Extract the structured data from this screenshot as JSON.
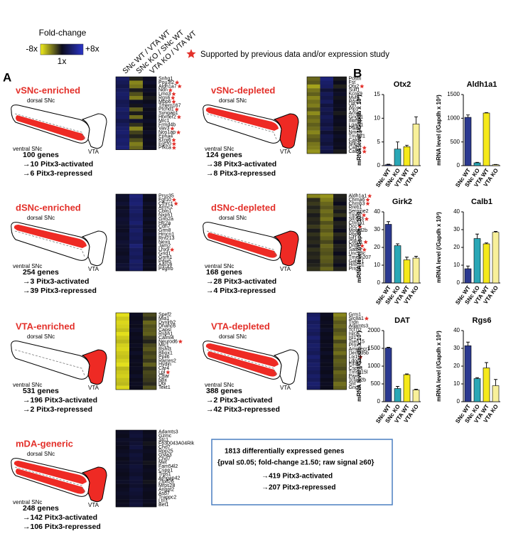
{
  "panel_labels": [
    "A",
    "B"
  ],
  "scale": {
    "title": "Fold-change",
    "ticks": [
      {
        "value": -3,
        "label": "-8x"
      },
      {
        "value": 0,
        "label": "1x"
      },
      {
        "value": 3,
        "label": "+8x"
      }
    ],
    "colors": [
      "#f2ee1c",
      "#0c0c1c",
      "#2b35c9"
    ]
  },
  "column_headers": [
    "SNc WT / VTA WT",
    "SNc KO / SNc WT",
    "VTA KO / VTA WT"
  ],
  "star_note": "Supported by previous data and/or expression study",
  "brain_labels": [
    "dorsal SNc",
    "ventral SNc",
    "VTA"
  ],
  "groups": [
    {
      "title": "vSNc-enriched",
      "counts": [
        "100 genes",
        "→10 Pitx3-activated",
        "→6 Pitx3-repressed"
      ],
      "genes": [
        "Snhg1",
        "Pou3f2",
        "Aldh1a7",
        "Ndn",
        "Lmo3",
        "Rgs6",
        "Mpp6",
        "Tmem167",
        "Ptchd1",
        "Syngap1",
        "Homer2",
        "Mrc1",
        "Frmd4b",
        "Vav3",
        "Nos1ap",
        "Epha4",
        "Kcnj6",
        "Fgf20",
        "Prkca"
      ],
      "stars": [
        false,
        true,
        true,
        true,
        true,
        true,
        true,
        false,
        true,
        false,
        true,
        false,
        false,
        true,
        true,
        false,
        true,
        true,
        true
      ],
      "values": [
        [
          1.2,
          -0.3,
          0.1
        ],
        [
          1.0,
          -1.6,
          0.3
        ],
        [
          0.8,
          -1.4,
          0.0
        ],
        [
          1.1,
          -0.2,
          0.2
        ],
        [
          1.3,
          -0.9,
          0.0
        ],
        [
          1.2,
          -1.5,
          -0.2
        ],
        [
          0.9,
          0.2,
          0.0
        ],
        [
          1.0,
          -0.1,
          0.3
        ],
        [
          1.3,
          -1.1,
          0.0
        ],
        [
          1.1,
          -0.2,
          0.1
        ],
        [
          1.2,
          -1.3,
          0.0
        ],
        [
          0.8,
          0.4,
          0.2
        ],
        [
          1.1,
          -0.5,
          0.0
        ],
        [
          1.3,
          -1.6,
          0.0
        ],
        [
          1.4,
          -0.7,
          0.2
        ],
        [
          1.2,
          -0.3,
          0.0
        ],
        [
          1.4,
          -0.9,
          0.1
        ],
        [
          1.3,
          -1.5,
          0.0
        ],
        [
          1.5,
          -1.2,
          0.1
        ]
      ]
    },
    {
      "title": "vSNc-depleted",
      "counts": [
        "124 genes",
        "→38 Pitx3-activated",
        "→8 Pitx3-repressed"
      ],
      "genes": [
        "Postn",
        "Fst",
        "Otx2",
        "Sulf1",
        "Kcnk9",
        "Myl9",
        "Rgs5",
        "Vtn",
        "Plp1",
        "Acta2",
        "Gng11",
        "Ifitm3",
        "Lgals1",
        "Plac9",
        "Nme5",
        "Tm4sf1",
        "Cald1",
        "Nfib",
        "Calb2",
        "Calb1"
      ],
      "stars": [
        false,
        false,
        true,
        false,
        false,
        false,
        false,
        false,
        false,
        false,
        false,
        false,
        false,
        false,
        false,
        false,
        false,
        false,
        true,
        true
      ],
      "values": [
        [
          -1.2,
          1.6,
          -0.2
        ],
        [
          -1.0,
          1.3,
          0.0
        ],
        [
          -2.0,
          1.2,
          -0.3
        ],
        [
          -1.4,
          0.5,
          0.0
        ],
        [
          -1.1,
          1.0,
          0.2
        ],
        [
          -1.6,
          0.8,
          -0.1
        ],
        [
          -1.3,
          1.1,
          0.0
        ],
        [
          -1.5,
          0.6,
          0.1
        ],
        [
          -1.0,
          0.9,
          0.0
        ],
        [
          -1.7,
          0.7,
          -0.2
        ],
        [
          -1.2,
          1.0,
          0.0
        ],
        [
          -1.4,
          0.8,
          0.1
        ],
        [
          -1.1,
          0.6,
          0.0
        ],
        [
          -1.3,
          0.9,
          -0.1
        ],
        [
          -1.6,
          0.4,
          0.0
        ],
        [
          -1.2,
          0.8,
          0.2
        ],
        [
          -1.0,
          0.7,
          0.0
        ],
        [
          -1.4,
          0.5,
          0.1
        ],
        [
          -1.5,
          0.9,
          0.0
        ],
        [
          -1.8,
          0.6,
          -0.2
        ]
      ]
    },
    {
      "title": "dSNc-enriched",
      "counts": [
        "254 genes",
        "→3 Pitx3-activated",
        "→39 Pitx3-repressed"
      ],
      "genes": [
        "Prss35",
        "Fgf10",
        "Cthrc1",
        "Armc2",
        "Cbln1",
        "Nxph1",
        "Grin2a",
        "Htr2a",
        "Cdh7",
        "Grm8",
        "Hmcn1",
        "Rnf213",
        "Nexn",
        "Jam2",
        "Lhx9",
        "Grid1",
        "Gnrh1",
        "Pdia5",
        "Adcy8",
        "Pdgfrb"
      ],
      "stars": [
        false,
        true,
        true,
        false,
        false,
        false,
        false,
        false,
        false,
        false,
        false,
        false,
        false,
        false,
        true,
        false,
        false,
        false,
        false,
        false
      ],
      "values": [
        [
          0.3,
          1.6,
          0.1
        ],
        [
          0.2,
          1.4,
          0.0
        ],
        [
          0.4,
          1.5,
          0.2
        ],
        [
          0.1,
          1.2,
          0.0
        ],
        [
          0.3,
          1.3,
          0.1
        ],
        [
          0.2,
          1.1,
          0.0
        ],
        [
          0.4,
          1.2,
          0.2
        ],
        [
          0.3,
          1.4,
          0.0
        ],
        [
          0.2,
          1.0,
          0.1
        ],
        [
          0.1,
          1.3,
          0.0
        ],
        [
          0.3,
          1.1,
          0.2
        ],
        [
          0.2,
          1.2,
          0.0
        ],
        [
          0.4,
          1.0,
          0.1
        ],
        [
          0.3,
          1.5,
          0.0
        ],
        [
          0.2,
          1.1,
          0.1
        ],
        [
          0.1,
          1.2,
          0.0
        ],
        [
          0.3,
          1.0,
          0.2
        ],
        [
          0.2,
          1.3,
          0.0
        ],
        [
          0.4,
          1.1,
          0.1
        ],
        [
          0.3,
          1.2,
          0.0
        ]
      ]
    },
    {
      "title": "dSNc-depleted",
      "counts": [
        "168 genes",
        "→28 Pitx3-activated",
        "→4 Pitx3-repressed"
      ],
      "genes": [
        "Aldh1a1",
        "Chrna6",
        "Chrnb3",
        "Rreb1",
        "Serpine2",
        "Trpc6",
        "Slc6a3",
        "Ctnna1",
        "Dcc",
        "Mobkl2b",
        "Rbp4",
        "Igf1",
        "Cdh11",
        "Drd2",
        "Satb1",
        "Unc13c",
        "Tmem207",
        "Gabrr1",
        "Hmcn1",
        "Prrg4"
      ],
      "stars": [
        true,
        true,
        true,
        false,
        false,
        true,
        true,
        false,
        true,
        false,
        false,
        false,
        true,
        true,
        true,
        false,
        false,
        false,
        false,
        false
      ],
      "values": [
        [
          -1.6,
          -1.8,
          -0.3
        ],
        [
          -0.4,
          -1.5,
          -0.2
        ],
        [
          -0.6,
          -1.2,
          0.0
        ],
        [
          -0.3,
          -1.0,
          -0.4
        ],
        [
          -0.5,
          -1.3,
          -0.2
        ],
        [
          -0.2,
          -1.1,
          -0.5
        ],
        [
          -0.4,
          -1.4,
          0.0
        ],
        [
          -0.3,
          -0.9,
          -0.3
        ],
        [
          -0.6,
          -1.2,
          -0.2
        ],
        [
          -0.2,
          -1.0,
          0.0
        ],
        [
          -0.5,
          -1.3,
          -0.4
        ],
        [
          -0.3,
          -1.1,
          -0.2
        ],
        [
          -0.4,
          -0.8,
          0.0
        ],
        [
          -0.2,
          -1.2,
          -0.3
        ],
        [
          -0.5,
          -1.0,
          -0.2
        ],
        [
          -0.3,
          -0.9,
          0.0
        ],
        [
          -0.4,
          -1.1,
          -0.3
        ],
        [
          -0.2,
          -1.0,
          -0.2
        ],
        [
          -0.3,
          -0.8,
          0.0
        ],
        [
          -0.5,
          -1.2,
          -0.3
        ]
      ]
    },
    {
      "title": "VTA-enriched",
      "counts": [
        "531 genes",
        "→196 Pitx3-activated",
        "→2 Pitx3-repressed"
      ],
      "genes": [
        "Spef2",
        "Mia1",
        "Dynlrb2",
        "Dnahc6",
        "Capsl",
        "Rsph1",
        "Calml4",
        "Neurod6",
        "Mlc1",
        "Rshl3",
        "Bbox1",
        "Ppil6",
        "Rarres2",
        "Hydin",
        "Car4",
        "Lpl",
        "Cftar",
        "Nfix",
        "Dbi",
        "Tekt1"
      ],
      "stars": [
        false,
        false,
        false,
        false,
        false,
        false,
        false,
        true,
        false,
        false,
        false,
        false,
        false,
        false,
        false,
        true,
        false,
        false,
        false,
        false
      ],
      "values": [
        [
          -2.8,
          0.1,
          -0.8
        ],
        [
          -2.5,
          0.0,
          -0.5
        ],
        [
          -2.7,
          0.1,
          -1.2
        ],
        [
          -2.6,
          0.0,
          -0.9
        ],
        [
          -2.4,
          0.2,
          -1.0
        ],
        [
          -2.8,
          0.0,
          -1.1
        ],
        [
          -2.5,
          0.1,
          -0.6
        ],
        [
          -2.3,
          0.0,
          -0.3
        ],
        [
          -2.6,
          0.1,
          -0.8
        ],
        [
          -2.7,
          0.0,
          -1.0
        ],
        [
          -2.5,
          0.2,
          -0.7
        ],
        [
          -2.4,
          0.0,
          -0.9
        ],
        [
          -2.6,
          0.1,
          -0.6
        ],
        [
          -2.8,
          0.0,
          -1.1
        ],
        [
          -2.3,
          0.1,
          -0.5
        ],
        [
          -2.5,
          0.0,
          -0.8
        ],
        [
          -2.6,
          0.2,
          -0.7
        ],
        [
          -2.4,
          0.0,
          -0.6
        ],
        [
          -2.3,
          0.1,
          -0.4
        ],
        [
          -2.7,
          0.0,
          -0.9
        ]
      ]
    },
    {
      "title": "VTA-depleted",
      "counts": [
        "388 genes",
        "→2 Pitx3-activated",
        "→42 Pitx3-repressed"
      ],
      "genes": [
        "Grm1",
        "Slc8a1",
        "Trdn",
        "Adamts3",
        "Tcf7l2",
        "Islr2",
        "Isl1",
        "Tsen15",
        "Prox1",
        "Ammecr1",
        "Dennd5b",
        "Lix1",
        "Ldoc1",
        "Eif4h",
        "Cspp1",
        "Tmsb15l",
        "Pax6",
        "Tcfap2b",
        "Sst",
        "Gng8"
      ],
      "stars": [
        false,
        true,
        false,
        false,
        false,
        false,
        false,
        false,
        false,
        false,
        false,
        true,
        false,
        false,
        false,
        false,
        false,
        false,
        false,
        false
      ],
      "values": [
        [
          1.2,
          0.1,
          -1.6
        ],
        [
          1.4,
          0.0,
          -1.3
        ],
        [
          1.1,
          0.1,
          -1.0
        ],
        [
          1.3,
          0.0,
          -1.2
        ],
        [
          1.2,
          0.2,
          -0.9
        ],
        [
          1.0,
          0.0,
          -1.1
        ],
        [
          1.4,
          0.1,
          -1.4
        ],
        [
          1.1,
          0.0,
          -0.8
        ],
        [
          1.3,
          0.1,
          -1.2
        ],
        [
          1.2,
          0.0,
          -1.0
        ],
        [
          1.0,
          0.2,
          -1.3
        ],
        [
          1.4,
          0.0,
          -0.9
        ],
        [
          1.1,
          0.1,
          -1.1
        ],
        [
          1.3,
          0.0,
          -1.0
        ],
        [
          1.2,
          0.1,
          -0.8
        ],
        [
          1.0,
          0.0,
          -1.2
        ],
        [
          1.3,
          0.2,
          -1.0
        ],
        [
          1.1,
          0.0,
          -0.9
        ],
        [
          1.4,
          0.1,
          -1.3
        ],
        [
          1.2,
          0.0,
          -1.1
        ]
      ]
    },
    {
      "title": "mDA-generic",
      "counts": [
        "248 genes",
        "→142 Pitx3-activated",
        "→106 Pitx3-repressed"
      ],
      "genes": [
        "Adamts3",
        "Gzmc",
        "Stc1",
        "F630043A04Rik",
        "Chd7",
        "Rpp25",
        "Gsta3",
        "Chd7",
        "Met",
        "Fam54l2",
        "Cspp1",
        "Trps1",
        "Arhgap42",
        "Zfp826",
        "Mrps28",
        "Angpt2",
        "Asb7",
        "Trappc2",
        "Ltn1",
        "Bet1"
      ],
      "stars": [
        false,
        false,
        false,
        false,
        false,
        false,
        false,
        false,
        false,
        false,
        false,
        false,
        false,
        false,
        false,
        false,
        false,
        false,
        false,
        false
      ],
      "values": [
        [
          0.1,
          0.4,
          0.0
        ],
        [
          0.0,
          0.5,
          0.1
        ],
        [
          0.2,
          0.3,
          0.0
        ],
        [
          0.1,
          0.4,
          -0.1
        ],
        [
          0.0,
          0.6,
          0.0
        ],
        [
          0.1,
          0.3,
          0.1
        ],
        [
          0.2,
          0.5,
          0.0
        ],
        [
          0.0,
          0.4,
          0.0
        ],
        [
          0.1,
          0.3,
          -0.1
        ],
        [
          0.2,
          0.5,
          0.0
        ],
        [
          0.1,
          0.4,
          0.1
        ],
        [
          0.0,
          0.3,
          0.0
        ],
        [
          0.1,
          0.5,
          0.0
        ],
        [
          0.2,
          0.4,
          -0.1
        ],
        [
          0.0,
          0.3,
          0.0
        ],
        [
          0.1,
          0.5,
          0.1
        ],
        [
          0.2,
          0.4,
          0.0
        ],
        [
          0.1,
          0.3,
          0.0
        ],
        [
          0.0,
          0.4,
          0.1
        ],
        [
          0.1,
          0.5,
          0.0
        ]
      ]
    }
  ],
  "summary": [
    "1813 differentially expressed genes",
    "{pval ≤0.05; fold-change ≥1.50;  raw signal ≥60}",
    "→419 Pitx3-activated",
    "→207 Pitx3-repressed"
  ],
  "chart_data": [
    {
      "type": "bar",
      "title": "Otx2",
      "ylabel": "mRNA level (/Gapdh x 10³)",
      "categories": [
        "SNc WT",
        "SNc KO",
        "VTA WT",
        "VTA KO"
      ],
      "values": [
        0.2,
        3.5,
        4,
        8.8
      ],
      "errors": [
        0.1,
        1.5,
        0.3,
        1.5
      ],
      "colors": [
        "#2b3990",
        "#2aa7b6",
        "#f5e91a",
        "#f8f09a"
      ],
      "ylim": [
        0,
        15
      ],
      "yticks": [
        0,
        5,
        10,
        15
      ]
    },
    {
      "type": "bar",
      "title": "Aldh1a1",
      "ylabel": "mRNA level (/Gapdh x 10³)",
      "categories": [
        "SNc WT",
        "SNc KO",
        "VTA WT",
        "VTA KO"
      ],
      "values": [
        1020,
        60,
        1110,
        20
      ],
      "errors": [
        50,
        10,
        10,
        5
      ],
      "colors": [
        "#2b3990",
        "#2aa7b6",
        "#f5e91a",
        "#f8f09a"
      ],
      "ylim": [
        0,
        1500
      ],
      "yticks": [
        0,
        500,
        1000,
        1500
      ]
    },
    {
      "type": "bar",
      "title": "Girk2",
      "ylabel": "mRNA level (/Gapdh x 10³)",
      "categories": [
        "SNc WT",
        "SNc KO",
        "VTA WT",
        "VTA KO"
      ],
      "values": [
        33,
        21,
        13,
        14
      ],
      "errors": [
        1.5,
        1,
        1.5,
        1
      ],
      "colors": [
        "#2b3990",
        "#2aa7b6",
        "#f5e91a",
        "#f8f09a"
      ],
      "ylim": [
        0,
        40
      ],
      "yticks": [
        0,
        10,
        20,
        30,
        40
      ]
    },
    {
      "type": "bar",
      "title": "Calb1",
      "ylabel": "mRNA level (/Gapdh x 10³)",
      "categories": [
        "SNc WT",
        "SNc KO",
        "VTA WT",
        "VTA KO"
      ],
      "values": [
        8,
        25,
        22,
        28.5
      ],
      "errors": [
        1.5,
        2.5,
        0.5,
        0.5
      ],
      "colors": [
        "#2b3990",
        "#2aa7b6",
        "#f5e91a",
        "#f8f09a"
      ],
      "ylim": [
        0,
        40
      ],
      "yticks": [
        0,
        10,
        20,
        30,
        40
      ]
    },
    {
      "type": "bar",
      "title": "DAT",
      "ylabel": "mRNA level (/Gapdh x 10³)",
      "categories": [
        "SNc WT",
        "SNc KO",
        "VTA WT",
        "VTA KO"
      ],
      "values": [
        1510,
        370,
        760,
        330
      ],
      "errors": [
        20,
        60,
        20,
        20
      ],
      "colors": [
        "#2b3990",
        "#2aa7b6",
        "#f5e91a",
        "#f8f09a"
      ],
      "ylim": [
        0,
        2000
      ],
      "yticks": [
        0,
        500,
        1000,
        1500,
        2000
      ]
    },
    {
      "type": "bar",
      "title": "Rgs6",
      "ylabel": "mRNA level (/Gapdh x 10³)",
      "categories": [
        "SNc WT",
        "SNc KO",
        "VTA WT",
        "VTA KO"
      ],
      "values": [
        31.5,
        13,
        19,
        9
      ],
      "errors": [
        2,
        0.5,
        3,
        3.5
      ],
      "colors": [
        "#2b3990",
        "#2aa7b6",
        "#f5e91a",
        "#f8f09a"
      ],
      "ylim": [
        0,
        40
      ],
      "yticks": [
        0,
        10,
        20,
        30,
        40
      ]
    }
  ]
}
